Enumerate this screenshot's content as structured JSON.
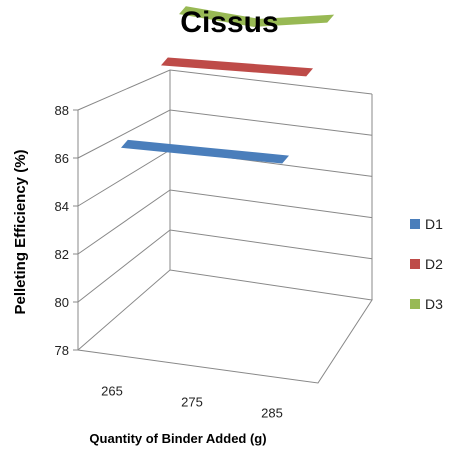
{
  "chart_data": {
    "type": "area",
    "title": "Cissus",
    "xlabel": "Quantity of Binder Added (g)",
    "ylabel": "Pelleting Efficiency (%)",
    "categories": [
      "265",
      "275",
      "285"
    ],
    "ylim": [
      78,
      88
    ],
    "yticks": [
      78,
      80,
      82,
      84,
      86,
      88
    ],
    "series": [
      {
        "name": "D1",
        "values": [
          82.4,
          82.2,
          82.0
        ],
        "color": "#4a7ebb"
      },
      {
        "name": "D2",
        "values": [
          86.0,
          85.9,
          85.8
        ],
        "color": "#be4b48"
      },
      {
        "name": "D3",
        "values": [
          88.3,
          87.9,
          88.2
        ],
        "color": "#98b954"
      }
    ],
    "legend_position": "right",
    "grid": true
  }
}
